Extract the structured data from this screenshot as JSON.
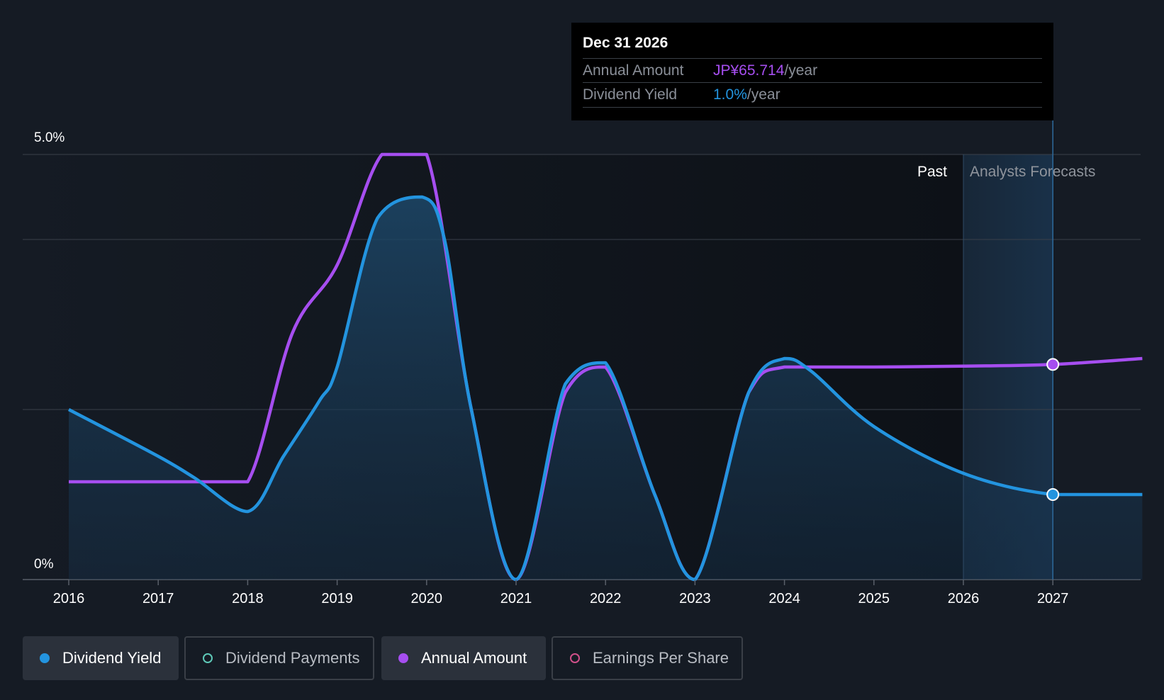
{
  "tooltip": {
    "date": "Dec 31 2026",
    "annual_label": "Annual Amount",
    "annual_value": "JP¥65.714",
    "annual_unit": "/year",
    "yield_label": "Dividend Yield",
    "yield_value": "1.0%",
    "yield_unit": "/year"
  },
  "regions": {
    "past": "Past",
    "forecast": "Analysts Forecasts"
  },
  "legend": [
    {
      "label": "Dividend Yield",
      "color": "#2394df",
      "active": true,
      "filled": true
    },
    {
      "label": "Dividend Payments",
      "color": "#5ec9b8",
      "active": false,
      "filled": false
    },
    {
      "label": "Annual Amount",
      "color": "#a64ef0",
      "active": true,
      "filled": true
    },
    {
      "label": "Earnings Per Share",
      "color": "#d0508a",
      "active": false,
      "filled": false
    }
  ],
  "colors": {
    "yield": "#2394df",
    "annual": "#a64ef0",
    "grid": "#3a404a",
    "forecast_line": "#2e5577"
  },
  "chart_data": {
    "type": "line",
    "title": "",
    "xlabel": "",
    "ylabel": "",
    "x_ticks": [
      "2016",
      "2017",
      "2018",
      "2019",
      "2020",
      "2021",
      "2022",
      "2023",
      "2024",
      "2025",
      "2026",
      "2027"
    ],
    "xlim": [
      2016,
      2028
    ],
    "ylim": [
      0,
      5.0
    ],
    "y_tick_labels": [
      {
        "value": 0,
        "label": "0%"
      },
      {
        "value": 5.0,
        "label": "5.0%"
      }
    ],
    "gridlines": [
      0,
      2.0,
      4.0,
      5.0
    ],
    "forecast_start": 2026,
    "marker_x": 2027,
    "series": [
      {
        "name": "Dividend Yield",
        "unit": "%",
        "points": [
          [
            2016.0,
            2.0
          ],
          [
            2017.0,
            1.45
          ],
          [
            2017.4,
            1.2
          ],
          [
            2018.0,
            0.8
          ],
          [
            2018.4,
            1.45
          ],
          [
            2018.8,
            2.1
          ],
          [
            2019.0,
            2.5
          ],
          [
            2019.45,
            4.25
          ],
          [
            2019.95,
            4.5
          ],
          [
            2020.2,
            4.0
          ],
          [
            2020.5,
            2.0
          ],
          [
            2021.0,
            0.0
          ],
          [
            2021.55,
            2.3
          ],
          [
            2022.0,
            2.55
          ],
          [
            2022.55,
            1.0
          ],
          [
            2023.0,
            0.0
          ],
          [
            2023.6,
            2.2
          ],
          [
            2024.0,
            2.6
          ],
          [
            2024.3,
            2.45
          ],
          [
            2025.0,
            1.8
          ],
          [
            2026.0,
            1.25
          ],
          [
            2027.0,
            1.0
          ],
          [
            2028.0,
            1.0
          ]
        ]
      },
      {
        "name": "Annual Amount",
        "unit": "JP¥ (scaled to yield axis)",
        "points": [
          [
            2016.0,
            1.15
          ],
          [
            2017.5,
            1.15
          ],
          [
            2018.0,
            1.15
          ],
          [
            2018.5,
            2.9
          ],
          [
            2019.0,
            3.7
          ],
          [
            2019.5,
            5.0
          ],
          [
            2020.0,
            5.0
          ],
          [
            2020.5,
            2.0
          ],
          [
            2021.0,
            0.0
          ],
          [
            2021.55,
            2.2
          ],
          [
            2022.0,
            2.5
          ],
          [
            2022.55,
            1.0
          ],
          [
            2023.0,
            0.0
          ],
          [
            2023.6,
            2.2
          ],
          [
            2024.0,
            2.5
          ],
          [
            2025.0,
            2.5
          ],
          [
            2026.0,
            2.51
          ],
          [
            2027.0,
            2.53
          ],
          [
            2028.0,
            2.6
          ]
        ]
      }
    ]
  }
}
